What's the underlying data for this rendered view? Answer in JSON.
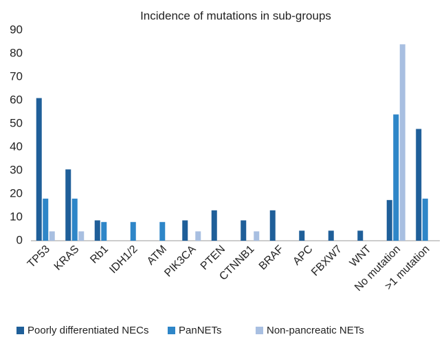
{
  "chart_data": {
    "type": "bar",
    "title": "Incidence of mutations in sub-groups",
    "categories": [
      "TP53",
      "KRAS",
      "Rb1",
      "IDH1/2",
      "ATM",
      "PIK3CA",
      "PTEN",
      "CTNNB1",
      "BRAF",
      "APC",
      "FBXW7",
      "WNT",
      "No mutation",
      ">1 mutation"
    ],
    "series": [
      {
        "name": "Poorly differentiated NECs",
        "color": "#1f5f99",
        "values": [
          61,
          30.5,
          8.7,
          0,
          0,
          8.7,
          13,
          8.7,
          13,
          4.3,
          4.3,
          4.3,
          17.4,
          47.8
        ]
      },
      {
        "name": "PanNETs",
        "color": "#2e86c8",
        "values": [
          18,
          18,
          8,
          8,
          8,
          0,
          0,
          0,
          0,
          0,
          0,
          0,
          54,
          18
        ]
      },
      {
        "name": "Non-pancreatic NETs",
        "color": "#a8bfe1",
        "values": [
          4,
          4,
          0,
          0,
          0,
          4,
          0,
          4,
          0,
          0,
          0,
          0,
          84,
          0
        ]
      }
    ],
    "ylim": [
      0,
      90
    ],
    "yticks": [
      0,
      10,
      20,
      30,
      40,
      50,
      60,
      70,
      80,
      90
    ],
    "grid": false,
    "legend": "bottom"
  }
}
